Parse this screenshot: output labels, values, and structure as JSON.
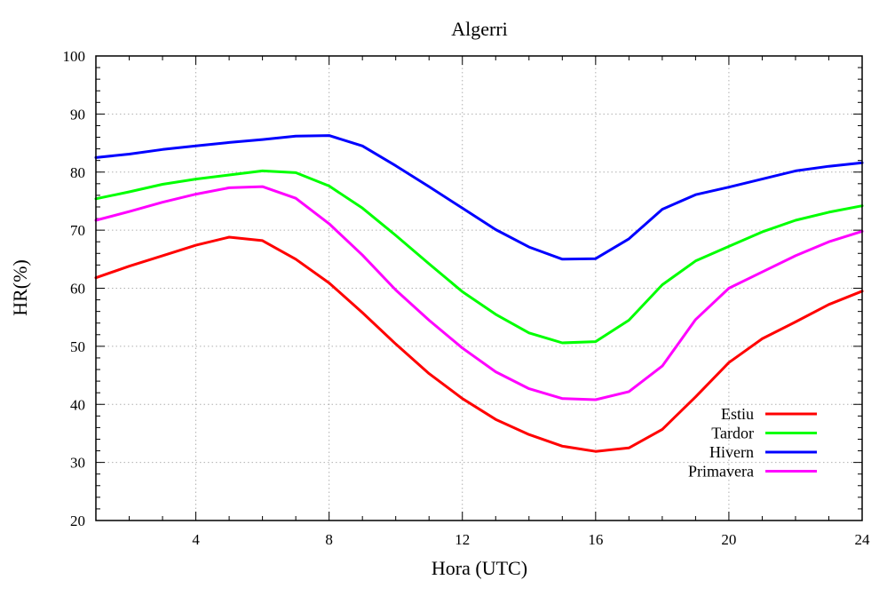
{
  "chart_data": {
    "type": "line",
    "title": "Algerri",
    "xlabel": "Hora (UTC)",
    "ylabel": "HR(%)",
    "xlim": [
      1,
      24
    ],
    "ylim": [
      20,
      100
    ],
    "x_ticks": [
      4,
      8,
      12,
      16,
      20,
      24
    ],
    "y_ticks": [
      20,
      30,
      40,
      50,
      60,
      70,
      80,
      90,
      100
    ],
    "x_minor_step": 1,
    "y_minor_step": 2,
    "grid": true,
    "legend_position": "bottom-right",
    "x": [
      1,
      2,
      3,
      4,
      5,
      6,
      7,
      8,
      9,
      10,
      11,
      12,
      13,
      14,
      15,
      16,
      17,
      18,
      19,
      20,
      21,
      22,
      23,
      24
    ],
    "series": [
      {
        "name": "Estiu",
        "color": "#ff0000",
        "values": [
          61.8,
          63.8,
          65.6,
          67.4,
          68.8,
          68.2,
          65.0,
          60.9,
          55.8,
          50.4,
          45.3,
          41.0,
          37.4,
          34.8,
          32.8,
          31.9,
          32.5,
          35.7,
          41.3,
          47.2,
          51.3,
          54.2,
          57.2,
          59.5
        ]
      },
      {
        "name": "Tardor",
        "color": "#00ff00",
        "values": [
          75.4,
          76.6,
          77.9,
          78.8,
          79.5,
          80.2,
          79.9,
          77.6,
          73.8,
          69.1,
          64.2,
          59.4,
          55.5,
          52.3,
          50.6,
          50.8,
          54.5,
          60.6,
          64.7,
          67.2,
          69.7,
          71.7,
          73.1,
          74.2
        ]
      },
      {
        "name": "Hivern",
        "color": "#0000ff",
        "values": [
          82.5,
          83.1,
          83.9,
          84.5,
          85.1,
          85.6,
          86.2,
          86.3,
          84.5,
          81.1,
          77.5,
          73.8,
          70.1,
          67.1,
          65.0,
          65.1,
          68.5,
          73.6,
          76.1,
          77.4,
          78.8,
          80.2,
          81.0,
          81.6
        ]
      },
      {
        "name": "Primavera",
        "color": "#ff00ff",
        "values": [
          71.7,
          73.2,
          74.8,
          76.2,
          77.3,
          77.5,
          75.5,
          71.1,
          65.7,
          59.7,
          54.5,
          49.7,
          45.6,
          42.7,
          41.0,
          40.8,
          42.2,
          46.6,
          54.6,
          60.0,
          62.8,
          65.6,
          68.0,
          69.8
        ]
      }
    ]
  }
}
